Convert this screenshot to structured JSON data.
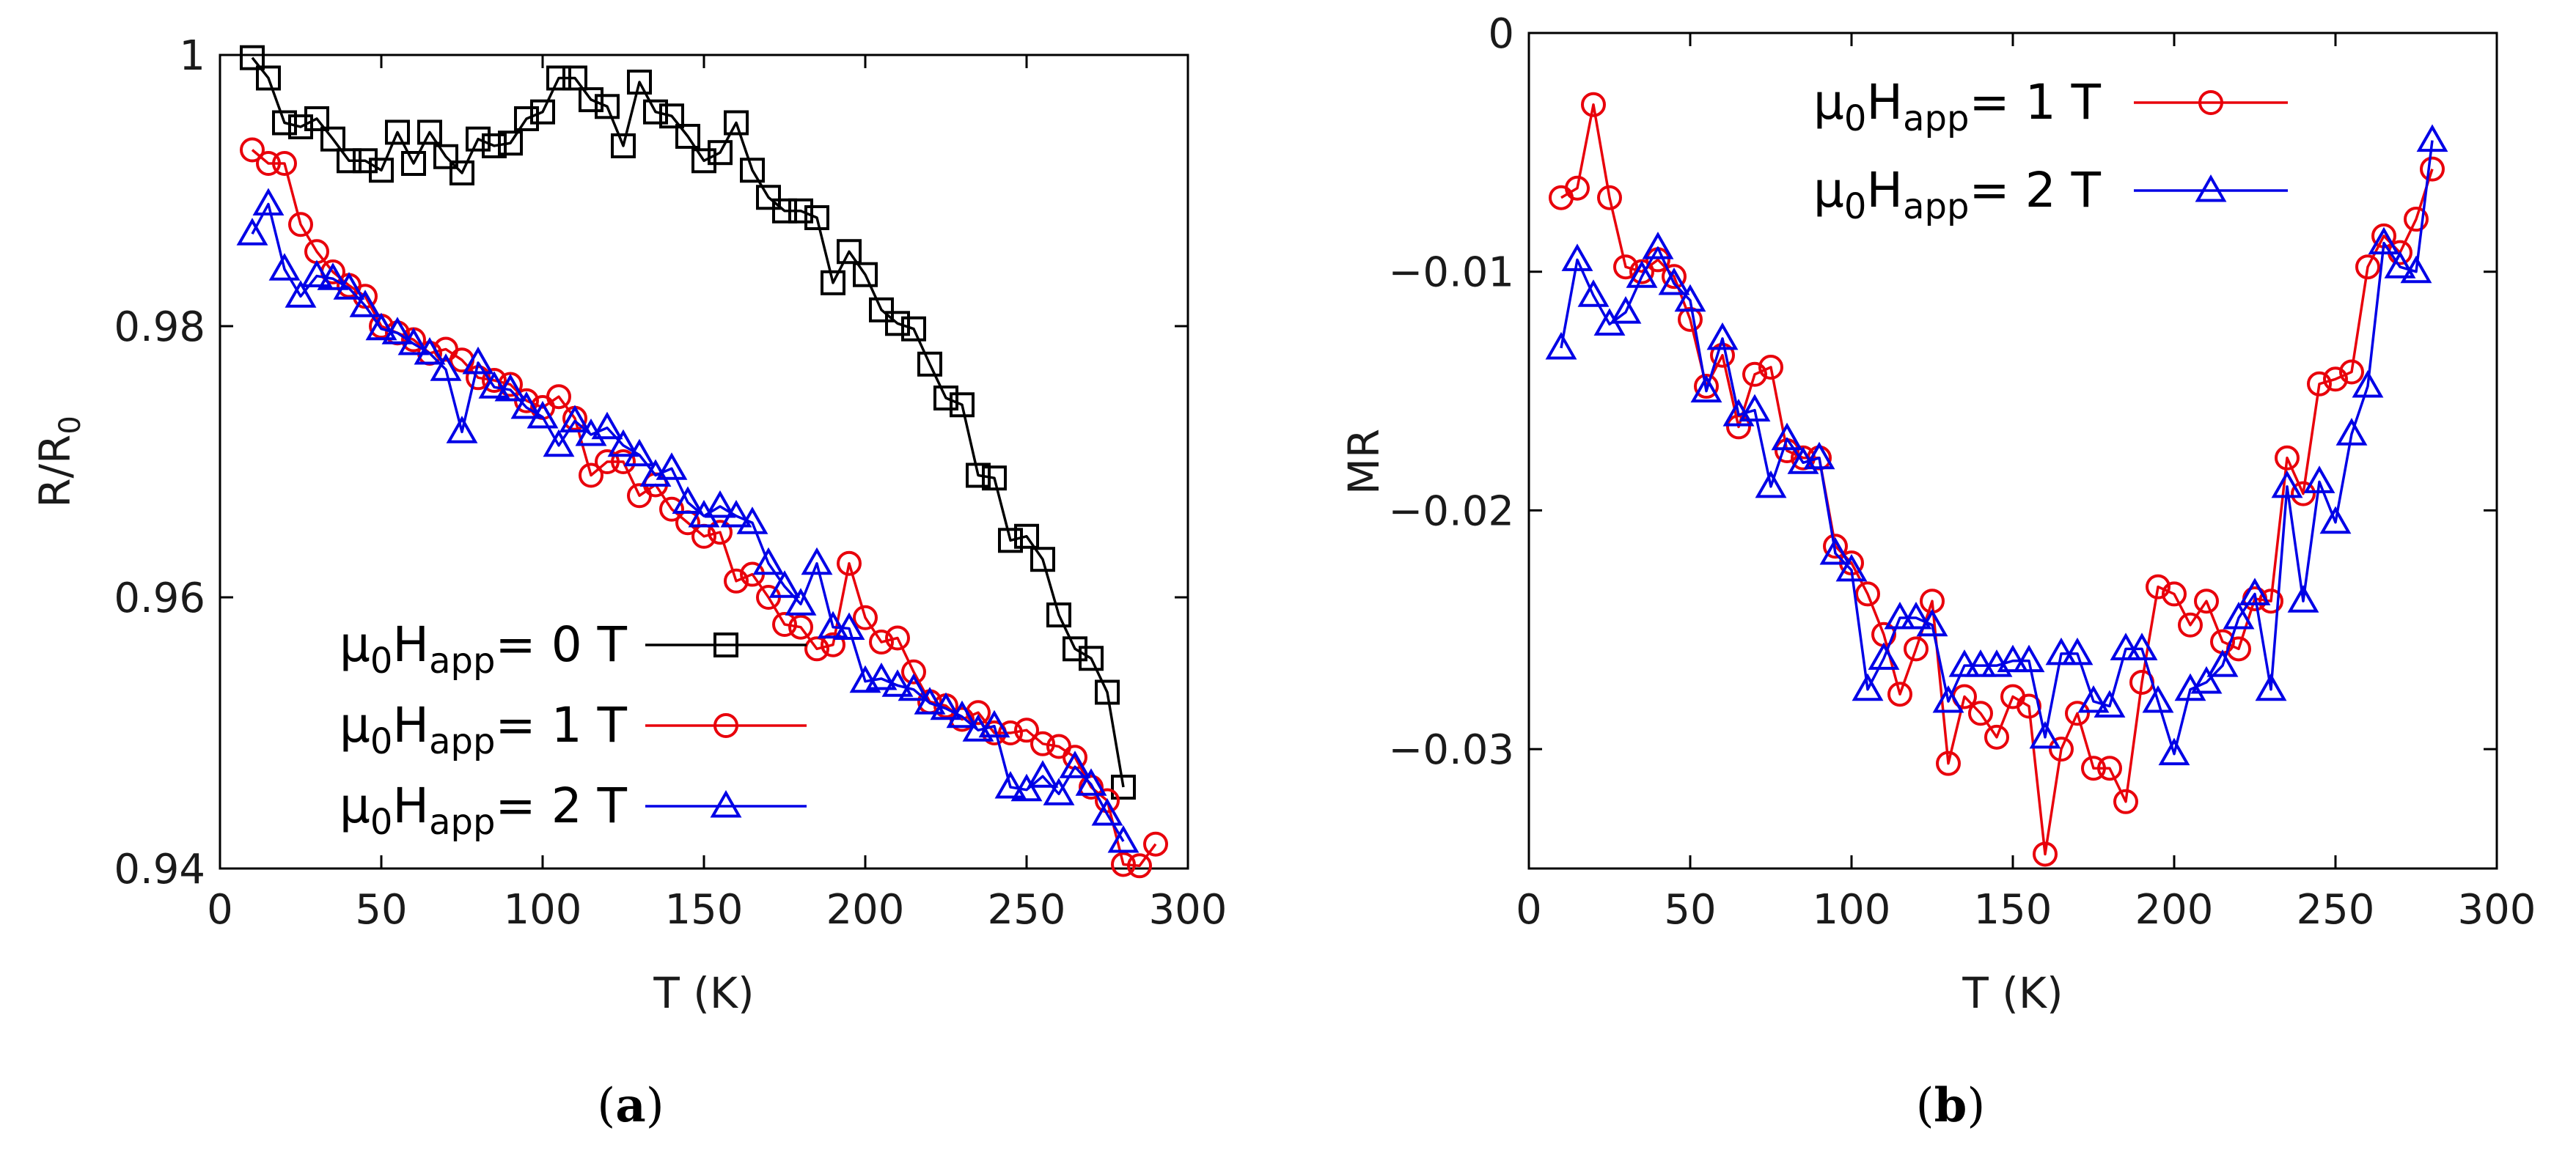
{
  "chart_data": [
    {
      "type": "line",
      "panel_label": "a",
      "xlabel": "T (K)",
      "ylabel": "R/R",
      "ylabel_sub": "0",
      "xlim": [
        0,
        300
      ],
      "ylim": [
        0.94,
        1.0
      ],
      "xticks": [
        "0",
        "50",
        "100",
        "150",
        "200",
        "250",
        "300"
      ],
      "yticks": [
        "0.94",
        "0.96",
        "0.98",
        "1"
      ],
      "legend_position": "lower-left",
      "series": [
        {
          "name": "μ0Happ= 0 T",
          "legend_prefix": "μ",
          "legend_sub1": "0",
          "legend_mid": "H",
          "legend_sub2": "app",
          "legend_suffix": "= 0 T",
          "color": "#000000",
          "marker": "square",
          "x": [
            10,
            15,
            20,
            25,
            30,
            35,
            40,
            45,
            50,
            55,
            60,
            65,
            70,
            75,
            80,
            85,
            90,
            95,
            100,
            105,
            110,
            115,
            120,
            125,
            130,
            135,
            140,
            145,
            150,
            155,
            160,
            165,
            170,
            175,
            180,
            185,
            190,
            195,
            200,
            205,
            210,
            215,
            220,
            225,
            230,
            235,
            240,
            245,
            250,
            255,
            260,
            265,
            270,
            275,
            280
          ],
          "y": [
            0.9998,
            0.9983,
            0.995,
            0.9947,
            0.9953,
            0.9938,
            0.9922,
            0.9922,
            0.9915,
            0.9943,
            0.992,
            0.9943,
            0.9925,
            0.9913,
            0.9938,
            0.9933,
            0.9935,
            0.9953,
            0.9958,
            0.9983,
            0.9983,
            0.9967,
            0.9962,
            0.9933,
            0.998,
            0.9958,
            0.9955,
            0.994,
            0.9922,
            0.9928,
            0.995,
            0.9915,
            0.9895,
            0.9885,
            0.9885,
            0.988,
            0.9832,
            0.9855,
            0.9838,
            0.9812,
            0.9802,
            0.9798,
            0.9772,
            0.9747,
            0.9742,
            0.969,
            0.9688,
            0.9642,
            0.9645,
            0.9628,
            0.9587,
            0.9562,
            0.9555,
            0.953,
            0.946
          ]
        },
        {
          "name": "μ0Happ= 1 T",
          "legend_prefix": "μ",
          "legend_sub1": "0",
          "legend_mid": "H",
          "legend_sub2": "app",
          "legend_suffix": "= 1 T",
          "color": "#e8000b",
          "marker": "circle",
          "x": [
            10,
            15,
            20,
            25,
            30,
            35,
            40,
            45,
            50,
            55,
            60,
            65,
            70,
            75,
            80,
            85,
            90,
            95,
            100,
            105,
            110,
            115,
            120,
            125,
            130,
            135,
            140,
            145,
            150,
            155,
            160,
            165,
            170,
            175,
            180,
            185,
            190,
            195,
            200,
            205,
            210,
            215,
            220,
            225,
            230,
            235,
            240,
            245,
            250,
            255,
            260,
            265,
            270,
            275,
            280,
            285,
            290
          ],
          "y": [
            0.993,
            0.992,
            0.992,
            0.9875,
            0.9855,
            0.984,
            0.983,
            0.9822,
            0.98,
            0.9795,
            0.979,
            0.978,
            0.9783,
            0.9775,
            0.9762,
            0.976,
            0.9757,
            0.9745,
            0.974,
            0.9748,
            0.9732,
            0.969,
            0.97,
            0.97,
            0.9675,
            0.9683,
            0.9665,
            0.9655,
            0.9645,
            0.9648,
            0.9612,
            0.9617,
            0.96,
            0.958,
            0.9578,
            0.9562,
            0.9565,
            0.9625,
            0.9585,
            0.9567,
            0.957,
            0.9545,
            0.9523,
            0.952,
            0.951,
            0.9515,
            0.95,
            0.95,
            0.9502,
            0.9492,
            0.949,
            0.9482,
            0.946,
            0.945,
            0.9403,
            0.9402,
            0.9418
          ]
        },
        {
          "name": "μ0Happ= 2 T",
          "legend_prefix": "μ",
          "legend_sub1": "0",
          "legend_mid": "H",
          "legend_sub2": "app",
          "legend_suffix": "= 2 T",
          "color": "#0000e6",
          "marker": "triangle",
          "x": [
            10,
            15,
            20,
            25,
            30,
            35,
            40,
            45,
            50,
            55,
            60,
            65,
            70,
            75,
            80,
            85,
            90,
            95,
            100,
            105,
            110,
            115,
            120,
            125,
            130,
            135,
            140,
            145,
            150,
            155,
            160,
            165,
            170,
            175,
            180,
            185,
            190,
            195,
            200,
            205,
            210,
            215,
            220,
            225,
            230,
            235,
            240,
            245,
            250,
            255,
            260,
            265,
            270,
            275,
            280
          ],
          "y": [
            0.9868,
            0.989,
            0.9842,
            0.9822,
            0.9837,
            0.9835,
            0.9828,
            0.9815,
            0.9798,
            0.9795,
            0.9787,
            0.978,
            0.9768,
            0.9722,
            0.9773,
            0.9755,
            0.9753,
            0.974,
            0.9733,
            0.9712,
            0.973,
            0.972,
            0.9725,
            0.9712,
            0.9705,
            0.969,
            0.9695,
            0.967,
            0.966,
            0.9667,
            0.966,
            0.9655,
            0.9625,
            0.9608,
            0.9595,
            0.9625,
            0.9578,
            0.9577,
            0.9538,
            0.954,
            0.9535,
            0.9532,
            0.9522,
            0.9518,
            0.9512,
            0.9502,
            0.9505,
            0.946,
            0.9458,
            0.9468,
            0.9455,
            0.9475,
            0.9462,
            0.944,
            0.942
          ]
        }
      ]
    },
    {
      "type": "line",
      "panel_label": "b",
      "xlabel": "T (K)",
      "ylabel": "MR",
      "xlim": [
        0,
        300
      ],
      "ylim": [
        -0.035,
        0.0
      ],
      "xticks": [
        "0",
        "50",
        "100",
        "150",
        "200",
        "250",
        "300"
      ],
      "yticks": [
        "-0.03",
        "-0.02",
        "-0.01",
        "0"
      ],
      "legend_position": "top-center",
      "series": [
        {
          "name": "μ0Happ= 1 T",
          "legend_prefix": "μ",
          "legend_sub1": "0",
          "legend_mid": "H",
          "legend_sub2": "app",
          "legend_suffix": "= 1 T",
          "color": "#e8000b",
          "marker": "circle",
          "x": [
            10,
            15,
            20,
            25,
            30,
            35,
            40,
            45,
            50,
            55,
            60,
            65,
            70,
            75,
            80,
            85,
            90,
            95,
            100,
            105,
            110,
            115,
            120,
            125,
            130,
            135,
            140,
            145,
            150,
            155,
            160,
            165,
            170,
            175,
            180,
            185,
            190,
            195,
            200,
            205,
            210,
            215,
            220,
            225,
            230,
            235,
            240,
            245,
            250,
            255,
            260,
            265,
            270,
            275,
            280
          ],
          "y": [
            -0.0069,
            -0.0065,
            -0.003,
            -0.0069,
            -0.0098,
            -0.01,
            -0.0095,
            -0.0102,
            -0.012,
            -0.0148,
            -0.0135,
            -0.0165,
            -0.0143,
            -0.014,
            -0.0175,
            -0.0178,
            -0.0178,
            -0.0215,
            -0.0222,
            -0.0235,
            -0.0252,
            -0.0277,
            -0.0258,
            -0.0238,
            -0.0306,
            -0.0278,
            -0.0285,
            -0.0295,
            -0.0278,
            -0.0282,
            -0.0344,
            -0.03,
            -0.0285,
            -0.0308,
            -0.0308,
            -0.0322,
            -0.0272,
            -0.0232,
            -0.0235,
            -0.0248,
            -0.0238,
            -0.0255,
            -0.0258,
            -0.0237,
            -0.0238,
            -0.0178,
            -0.0193,
            -0.0147,
            -0.0145,
            -0.0142,
            -0.0098,
            -0.0085,
            -0.0092,
            -0.0078,
            -0.0057
          ]
        },
        {
          "name": "μ0Happ= 2 T",
          "legend_prefix": "μ",
          "legend_sub1": "0",
          "legend_mid": "H",
          "legend_sub2": "app",
          "legend_suffix": "= 2 T",
          "color": "#0000e6",
          "marker": "triangle",
          "x": [
            10,
            15,
            20,
            25,
            30,
            35,
            40,
            45,
            50,
            55,
            60,
            65,
            70,
            75,
            80,
            85,
            90,
            95,
            100,
            105,
            110,
            115,
            120,
            125,
            130,
            135,
            140,
            145,
            150,
            155,
            160,
            165,
            170,
            175,
            180,
            185,
            190,
            195,
            200,
            205,
            210,
            215,
            220,
            225,
            230,
            235,
            240,
            245,
            250,
            255,
            260,
            265,
            270,
            275,
            280
          ],
          "y": [
            -0.0132,
            -0.0095,
            -0.011,
            -0.0122,
            -0.0117,
            -0.0102,
            -0.009,
            -0.0105,
            -0.0112,
            -0.015,
            -0.0128,
            -0.016,
            -0.0158,
            -0.019,
            -0.017,
            -0.018,
            -0.0178,
            -0.0218,
            -0.0225,
            -0.0275,
            -0.0262,
            -0.0245,
            -0.0245,
            -0.0248,
            -0.028,
            -0.0265,
            -0.0265,
            -0.0265,
            -0.0263,
            -0.0263,
            -0.0295,
            -0.026,
            -0.026,
            -0.028,
            -0.0282,
            -0.0258,
            -0.0258,
            -0.028,
            -0.0302,
            -0.0275,
            -0.0272,
            -0.0265,
            -0.0245,
            -0.0235,
            -0.0275,
            -0.019,
            -0.0238,
            -0.0188,
            -0.0205,
            -0.0168,
            -0.0148,
            -0.0088,
            -0.0098,
            -0.01,
            -0.0045
          ]
        }
      ]
    }
  ]
}
